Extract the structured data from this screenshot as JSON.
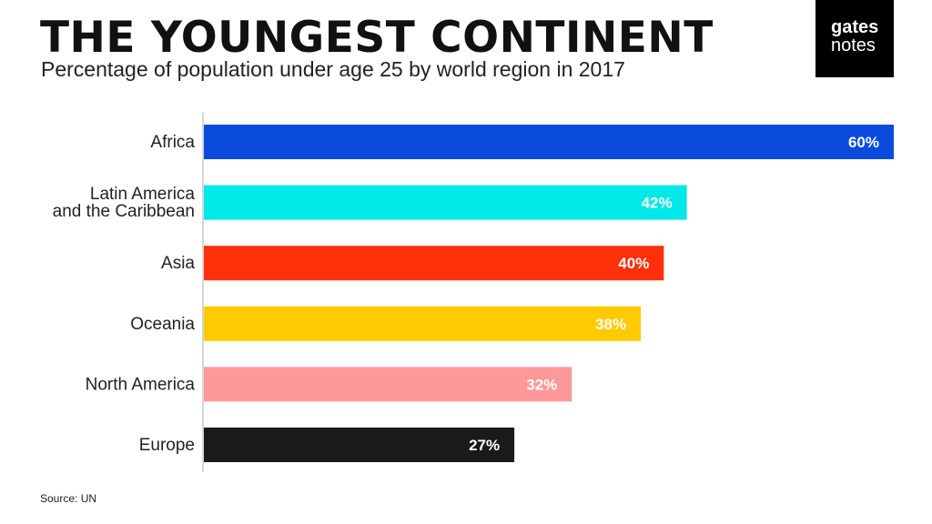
{
  "header": {
    "title": "THE YOUNGEST CONTINENT",
    "subtitle": "Percentage of population under age 25 by world region in 2017"
  },
  "logo": {
    "line1": "gates",
    "line2": "notes"
  },
  "footer": {
    "source": "Source: UN"
  },
  "chart_data": {
    "type": "bar",
    "orientation": "horizontal",
    "title": "THE YOUNGEST CONTINENT",
    "subtitle": "Percentage of population under age 25 by world region in 2017",
    "categories": [
      [
        "Africa"
      ],
      [
        "Latin America",
        "and the Caribbean"
      ],
      [
        "Asia"
      ],
      [
        "Oceania"
      ],
      [
        "North America"
      ],
      [
        "Europe"
      ]
    ],
    "values": [
      60,
      42,
      40,
      38,
      32,
      27
    ],
    "labels": [
      "60%",
      "42%",
      "40%",
      "38%",
      "32%",
      "27%"
    ],
    "colors": [
      "#0a4bde",
      "#00e8e8",
      "#ff300a",
      "#ffcb00",
      "#ff9898",
      "#1a1a1a"
    ],
    "xlim": [
      0,
      60
    ],
    "grid": false,
    "legend": "none"
  }
}
